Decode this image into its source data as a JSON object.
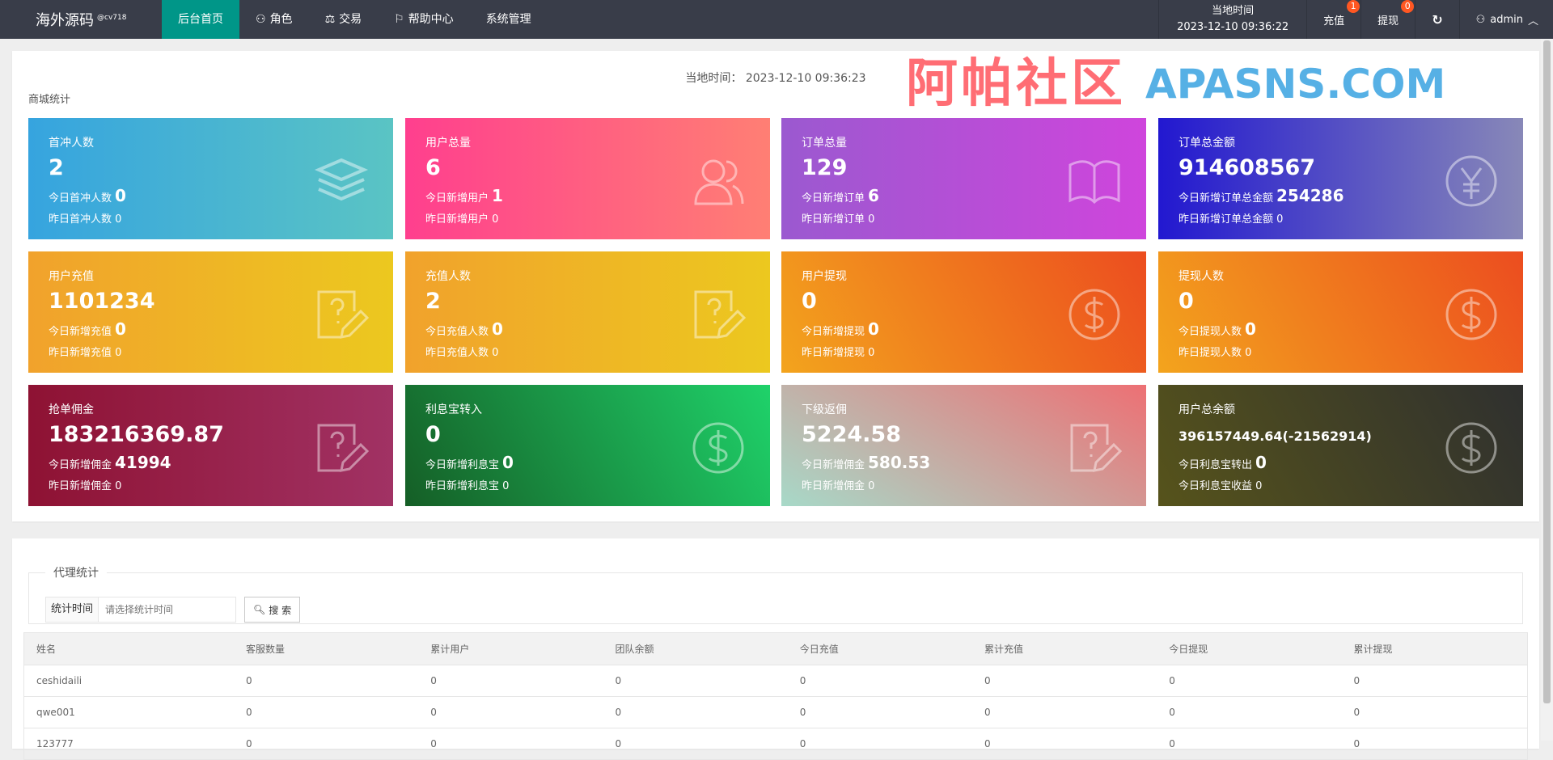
{
  "nav": {
    "logo": "海外源码",
    "logo_sup": "@cv718",
    "menu": [
      {
        "label": "后台首页",
        "icon": ""
      },
      {
        "label": "角色",
        "icon": "user-icon"
      },
      {
        "label": "交易",
        "icon": "scale-icon"
      },
      {
        "label": "帮助中心",
        "icon": "flag-icon"
      },
      {
        "label": "系统管理",
        "icon": ""
      }
    ],
    "time_label": "当地时间",
    "time_value": "2023-12-10 09:36:22",
    "recharge": "充值",
    "recharge_badge": "1",
    "withdraw": "提现",
    "withdraw_badge": "0",
    "user": "admin",
    "active_color": "#009688"
  },
  "stats": {
    "local_time": "当地时间： 2023-12-10 09:36:23",
    "title": "商城统计",
    "cards": [
      {
        "title": "首冲人数",
        "value": "2",
        "l1": "今日首冲人数",
        "l1v": "0",
        "l2": "昨日首冲人数 0",
        "icon": "layers-icon"
      },
      {
        "title": "用户总量",
        "value": "6",
        "l1": "今日新增用户",
        "l1v": "1",
        "l2": "昨日新增用户 0",
        "icon": "users-icon"
      },
      {
        "title": "订单总量",
        "value": "129",
        "l1": "今日新增订单",
        "l1v": "6",
        "l2": "昨日新增订单 0",
        "icon": "book-icon"
      },
      {
        "title": "订单总金额",
        "value": "914608567",
        "l1": "今日新增订单总金额",
        "l1v": "254286",
        "l2": "昨日新增订单总金额 0",
        "icon": "yen-icon"
      },
      {
        "title": "用户充值",
        "value": "1101234",
        "l1": "今日新增充值",
        "l1v": "0",
        "l2": "昨日新增充值 0",
        "icon": "help-edit-icon"
      },
      {
        "title": "充值人数",
        "value": "2",
        "l1": "今日充值人数",
        "l1v": "0",
        "l2": "昨日充值人数 0",
        "icon": "help-edit-icon"
      },
      {
        "title": "用户提现",
        "value": "0",
        "l1": "今日新增提现",
        "l1v": "0",
        "l2": "昨日新增提现 0",
        "icon": "dollar-icon"
      },
      {
        "title": "提现人数",
        "value": "0",
        "l1": "今日提现人数",
        "l1v": "0",
        "l2": "昨日提现人数 0",
        "icon": "dollar-icon"
      },
      {
        "title": "抢单佣金",
        "value": "183216369.87",
        "l1": "今日新增佣金",
        "l1v": "41994",
        "l2": "昨日新增佣金 0",
        "icon": "help-edit-icon"
      },
      {
        "title": "利息宝转入",
        "value": "0",
        "l1": "今日新增利息宝",
        "l1v": "0",
        "l2": "昨日新增利息宝 0",
        "icon": "dollar-icon"
      },
      {
        "title": "下级返佣",
        "value": "5224.58",
        "l1": "今日新增佣金",
        "l1v": "580.53",
        "l2": "昨日新增佣金 0",
        "icon": "help-edit-icon"
      },
      {
        "title": "用户总余额",
        "value": "396157449.64(-21562914)",
        "l1": "今日利息宝转出",
        "l1v": "0",
        "l2": "今日利息宝收益 0",
        "icon": "dollar-icon"
      }
    ]
  },
  "watermark": {
    "line1": "阿帕社区",
    "line2": "APASNS.COM"
  },
  "agent": {
    "legend": "代理统计",
    "label": "统计时间",
    "placeholder": "请选择统计时间",
    "search": "搜 索",
    "columns": [
      "姓名",
      "客服数量",
      "累计用户",
      "团队余额",
      "今日充值",
      "累计充值",
      "今日提现",
      "累计提现"
    ],
    "rows": [
      [
        "ceshidaili",
        "0",
        "0",
        "0",
        "0",
        "0",
        "0",
        "0"
      ],
      [
        "qwe001",
        "0",
        "0",
        "0",
        "0",
        "0",
        "0",
        "0"
      ],
      [
        "123777",
        "0",
        "0",
        "0",
        "0",
        "0",
        "0",
        "0"
      ]
    ]
  }
}
